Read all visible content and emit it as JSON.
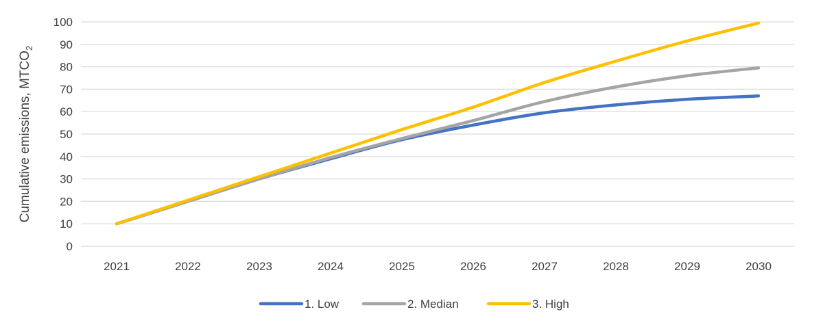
{
  "chart_data": {
    "type": "line",
    "title": "",
    "xlabel": "",
    "ylabel": "Cumulative emissions, MTCO",
    "ylabel_subscript": "2",
    "x": [
      "2021",
      "2022",
      "2023",
      "2024",
      "2025",
      "2026",
      "2027",
      "2028",
      "2029",
      "2030"
    ],
    "ylim": [
      0,
      100
    ],
    "yticks": [
      0,
      10,
      20,
      30,
      40,
      50,
      60,
      70,
      80,
      90,
      100
    ],
    "grid": true,
    "legend_position": "bottom",
    "series": [
      {
        "name": "1. Low",
        "color": "#4472C4",
        "values": [
          10,
          20,
          30,
          39,
          47.5,
          54,
          59.5,
          63,
          65.5,
          67
        ]
      },
      {
        "name": "2. Median",
        "color": "#A5A5A5",
        "values": [
          10,
          20,
          30,
          39.5,
          48,
          56,
          64.5,
          71,
          76,
          79.5
        ]
      },
      {
        "name": "3. High",
        "color": "#FFC000",
        "values": [
          10,
          20.5,
          31,
          41.5,
          52,
          62,
          73,
          82.5,
          91.5,
          99.5
        ]
      }
    ]
  }
}
